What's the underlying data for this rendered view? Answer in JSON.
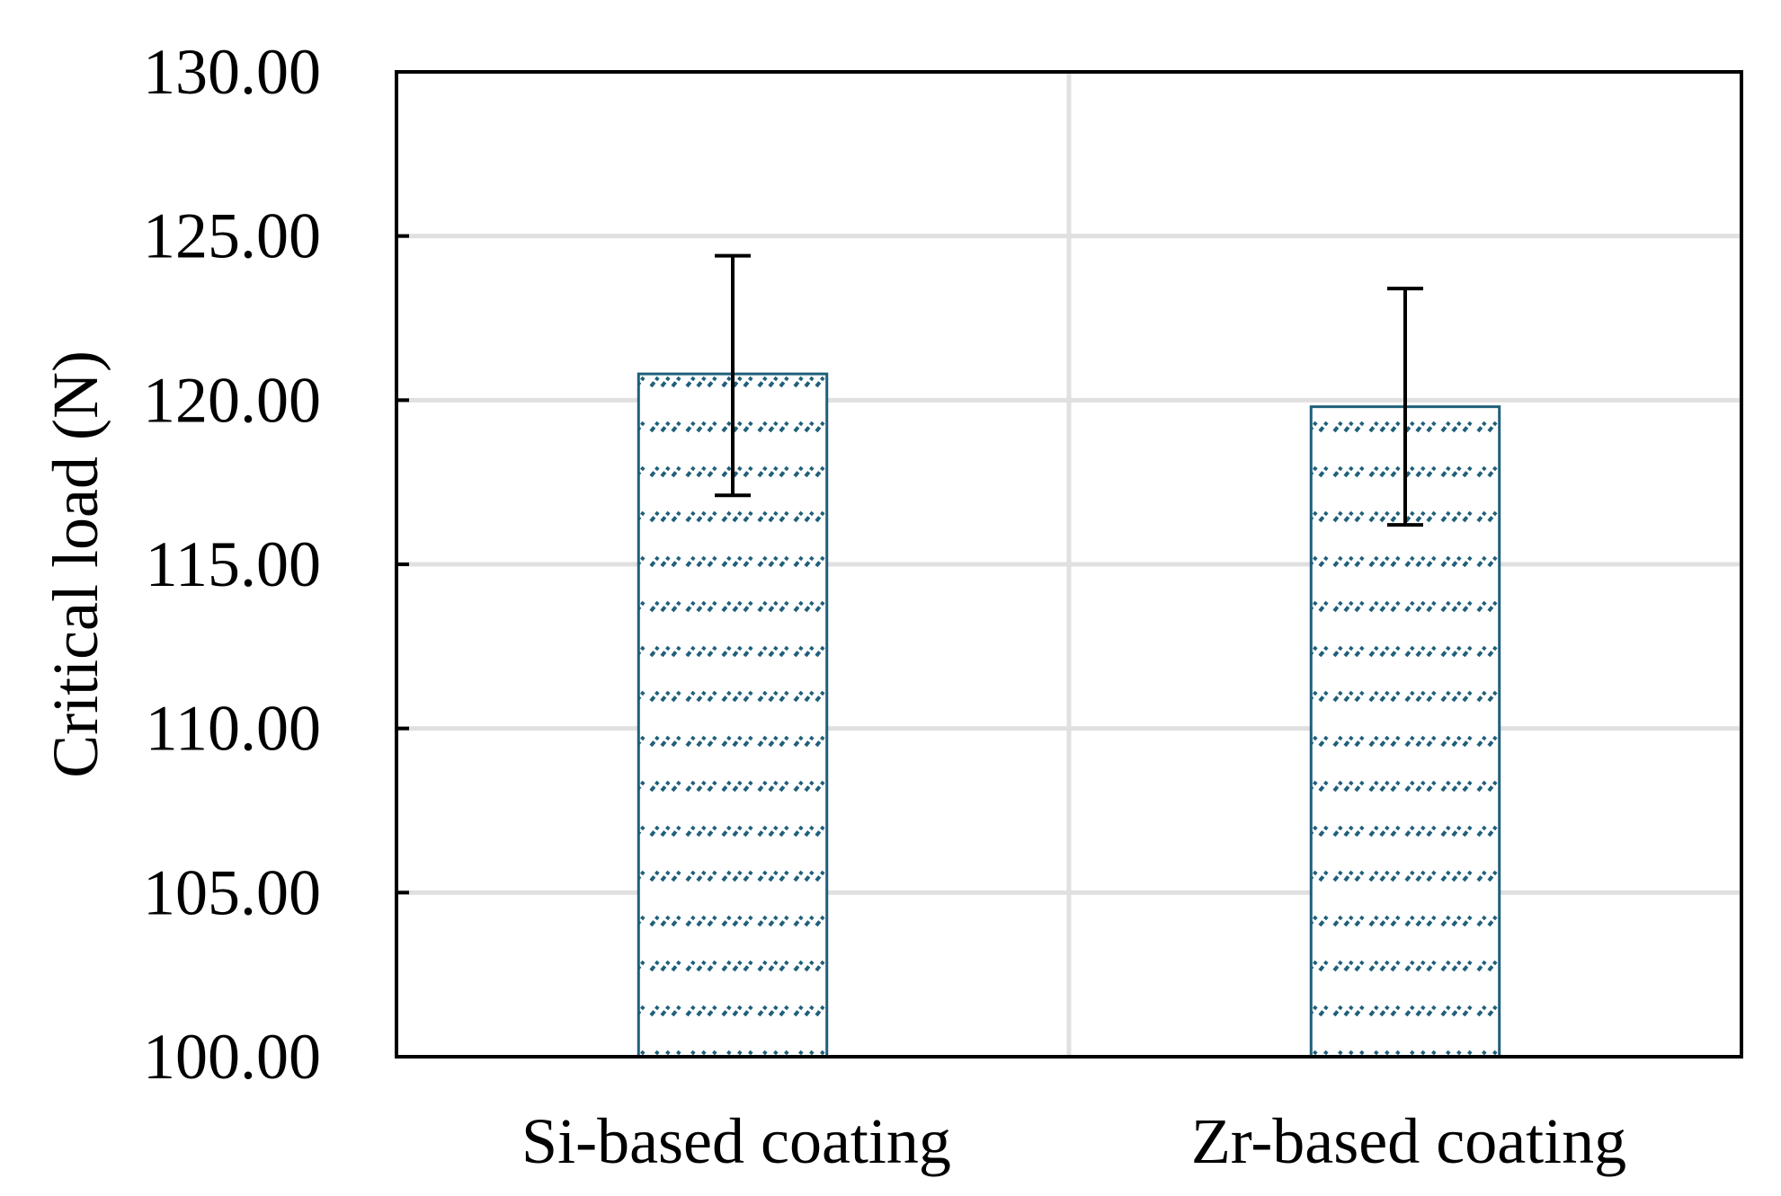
{
  "chart_data": {
    "type": "bar",
    "title": "",
    "xlabel": "",
    "ylabel": "Critical load (N)",
    "ylim": [
      100,
      130
    ],
    "yticks": [
      100,
      105,
      110,
      115,
      120,
      125,
      130
    ],
    "ytick_labels": [
      "100.00",
      "105.00",
      "110.00",
      "115.00",
      "120.00",
      "125.00",
      "130.00"
    ],
    "grid": true,
    "categories": [
      "Si-based coating",
      "Zr-based coating"
    ],
    "values": [
      120.8,
      119.8
    ],
    "error_low": [
      117.1,
      116.2
    ],
    "error_high": [
      124.4,
      123.4
    ],
    "legend": "none",
    "colors": {
      "bar_edge": "#1f5f7a",
      "hatch": "#1f5f7a",
      "grid": "#e0e0e0",
      "axis": "#000000",
      "error_bar": "#000000"
    }
  }
}
